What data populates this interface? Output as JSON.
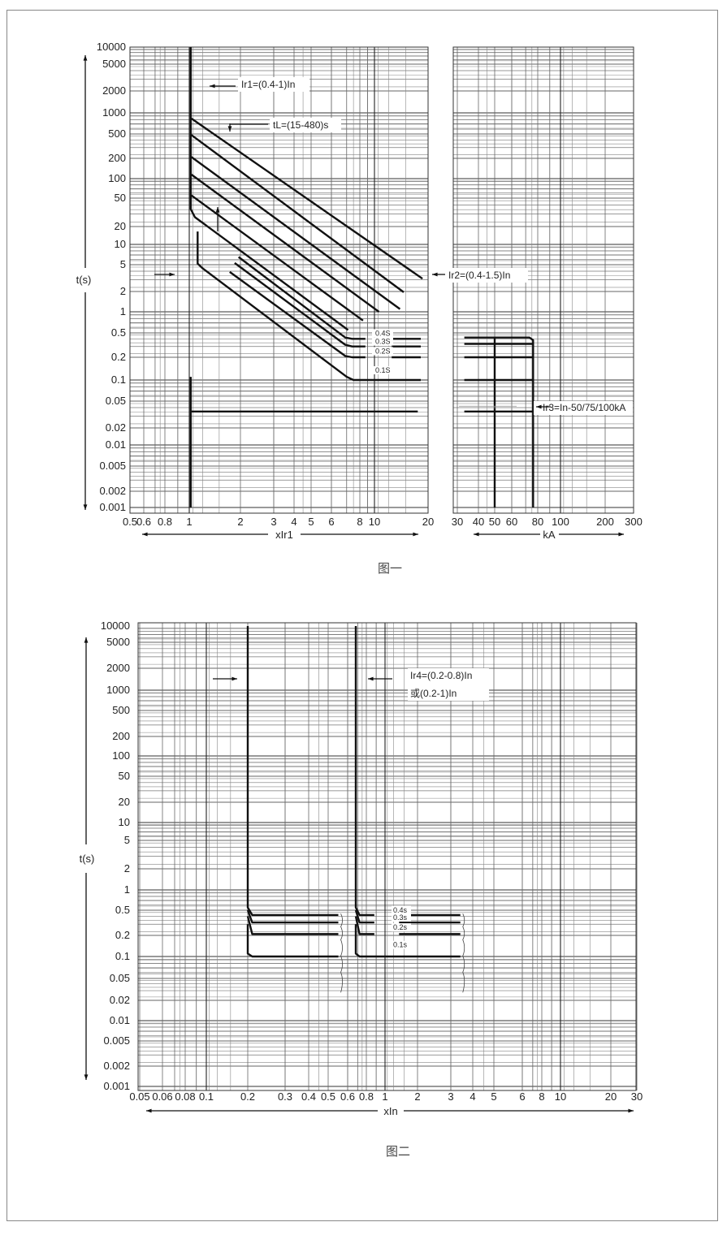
{
  "chart_data": [
    {
      "type": "line",
      "caption": "图一",
      "ylabel": "t(s)",
      "yscale": "log",
      "ylim": [
        0.001,
        10000
      ],
      "yticks": [
        "10000",
        "5000",
        "2000",
        "1000",
        "500",
        "200",
        "100",
        "50",
        "20",
        "10",
        "5",
        "2",
        "1",
        "0.5",
        "0.2",
        "0.1",
        "0.05",
        "0.02",
        "0.01",
        "0.005",
        "0.002",
        "0.001"
      ],
      "grid": true,
      "panels": [
        {
          "xlabel": "xIr1",
          "xscale": "log",
          "xlim": [
            0.5,
            20
          ],
          "xticks": [
            "0.5",
            "0.6",
            "0.8",
            "1",
            "2",
            "3",
            "4",
            "5",
            "6",
            "8",
            "10",
            "20"
          ],
          "curves": [
            {
              "role": "Ir1 pickup + long-time",
              "points": [
                [
                  1.02,
                  10000
                ],
                [
                  1.02,
                  35
                ],
                [
                  1.08,
                  27
                ],
                [
                  7.1,
                  0.55
                ]
              ]
            },
            {
              "role": "long-time",
              "points": [
                [
                  1.03,
                  830
                ],
                [
                  18.6,
                  3.1
                ]
              ]
            },
            {
              "role": "long-time",
              "points": [
                [
                  1.03,
                  480
                ],
                [
                  14.6,
                  1.95
                ]
              ]
            },
            {
              "role": "long-time",
              "points": [
                [
                  1.03,
                  210
                ],
                [
                  13.9,
                  1.1
                ]
              ]
            },
            {
              "role": "long-time",
              "points": [
                [
                  1.03,
                  115
                ],
                [
                  10.6,
                  1.0
                ]
              ]
            },
            {
              "role": "long-time",
              "points": [
                [
                  1.03,
                  55
                ],
                [
                  8.4,
                  0.75
                ]
              ]
            },
            {
              "role": "short-time 0.1S",
              "points": [
                [
                  1.12,
                  16.5
                ],
                [
                  1.12,
                  5.2
                ],
                [
                  1.2,
                  4.4
                ],
                [
                  7.0,
                  0.11
                ],
                [
                  7.5,
                  0.1
                ],
                [
                  18.2,
                  0.1
                ]
              ]
            },
            {
              "role": "short-time 0.2S",
              "points": [
                [
                  1.73,
                  3.9
                ],
                [
                  6.9,
                  0.21
                ],
                [
                  7.4,
                  0.2
                ],
                [
                  8.7,
                  0.2
                ]
              ],
              "tail": [
                [
                  12.5,
                  0.2
                ],
                [
                  18.2,
                  0.2
                ]
              ]
            },
            {
              "role": "short-time 0.3S",
              "points": [
                [
                  1.85,
                  5.3
                ],
                [
                  6.9,
                  0.32
                ],
                [
                  7.4,
                  0.3
                ],
                [
                  8.7,
                  0.3
                ]
              ],
              "tail": [
                [
                  12.5,
                  0.3
                ],
                [
                  18.2,
                  0.3
                ]
              ]
            },
            {
              "role": "short-time 0.4S",
              "points": [
                [
                  1.95,
                  6.5
                ],
                [
                  6.9,
                  0.42
                ],
                [
                  7.4,
                  0.4
                ],
                [
                  8.7,
                  0.4
                ]
              ],
              "tail": [
                [
                  12.5,
                  0.4
                ],
                [
                  18.2,
                  0.4
                ]
              ]
            },
            {
              "role": "instantaneous",
              "points": [
                [
                  1.02,
                  0.11
                ],
                [
                  1.02,
                  0.001
                ]
              ]
            },
            {
              "role": "instantaneous",
              "points": [
                [
                  1.02,
                  0.035
                ],
                [
                  17.5,
                  0.035
                ]
              ]
            }
          ],
          "delay_labels": [
            {
              "text": "0.4S",
              "y": 0.45
            },
            {
              "text": "0.3S",
              "y": 0.33
            },
            {
              "text": "0.2S",
              "y": 0.23
            },
            {
              "text": "0.1S",
              "y": 0.125
            }
          ]
        },
        {
          "xlabel": "kA",
          "xscale": "log",
          "xlim": [
            30,
            300
          ],
          "xticks": [
            "30",
            "40",
            "50",
            "60",
            "80",
            "100",
            "200",
            "300"
          ],
          "curves": [
            {
              "points": [
                [
                  33,
                  0.42
                ],
                [
                  73,
                  0.42
                ],
                [
                  76,
                  0.38
                ],
                [
                  76,
                  0.001
                ]
              ]
            },
            {
              "points": [
                [
                  33,
                  0.33
                ],
                [
                  76,
                  0.33
                ]
              ]
            },
            {
              "points": [
                [
                  33,
                  0.2
                ],
                [
                  76,
                  0.2
                ]
              ]
            },
            {
              "points": [
                [
                  33,
                  0.1
                ],
                [
                  76,
                  0.1
                ]
              ]
            },
            {
              "points": [
                [
                  33,
                  0.035
                ],
                [
                  76,
                  0.035
                ]
              ]
            },
            {
              "points": [
                [
                  50,
                  0.42
                ],
                [
                  50,
                  0.001
                ]
              ]
            }
          ]
        }
      ],
      "annotations": {
        "ir1": "Ir1=(0.4-1)In",
        "tl": "tL=(15-480)s",
        "ir2": "Ir2=(0.4-1.5)In",
        "ir3": "Ir3=In-50/75/100kA"
      }
    },
    {
      "type": "line",
      "caption": "图二",
      "ylabel": "t(s)",
      "yscale": "log",
      "ylim": [
        0.001,
        10000
      ],
      "yticks": [
        "10000",
        "5000",
        "2000",
        "1000",
        "500",
        "200",
        "100",
        "50",
        "20",
        "10",
        "5",
        "2",
        "1",
        "0.5",
        "0.2",
        "0.1",
        "0.05",
        "0.02",
        "0.01",
        "0.005",
        "0.002",
        "0.001"
      ],
      "xlabel": "xIn",
      "xscale": "log",
      "xlim": [
        0.05,
        30
      ],
      "xticks": [
        "0.05",
        "0.06",
        "0.08",
        "0.1",
        "0.2",
        "0.3",
        "0.4",
        "0.5",
        "0.6",
        "0.8",
        "1",
        "2",
        "3",
        "4",
        "5",
        "6",
        "8",
        "10",
        "20",
        "30"
      ],
      "grid": true,
      "curves": [
        {
          "points": [
            [
              0.2,
              10000
            ],
            [
              0.2,
              0.55
            ],
            [
              0.21,
              0.42
            ],
            [
              0.55,
              0.42
            ]
          ]
        },
        {
          "points": [
            [
              0.2,
              0.5
            ],
            [
              0.21,
              0.32
            ],
            [
              0.55,
              0.32
            ]
          ]
        },
        {
          "points": [
            [
              0.2,
              0.4
            ],
            [
              0.21,
              0.21
            ],
            [
              0.55,
              0.21
            ]
          ]
        },
        {
          "points": [
            [
              0.2,
              0.3
            ],
            [
              0.2,
              0.11
            ],
            [
              0.21,
              0.1
            ],
            [
              0.55,
              0.1
            ]
          ]
        },
        {
          "points": [
            [
              0.68,
              10000
            ],
            [
              0.68,
              0.55
            ],
            [
              0.72,
              0.42
            ],
            [
              0.88,
              0.42
            ]
          ],
          "tail": [
            [
              1.35,
              0.42
            ],
            [
              3.4,
              0.42
            ]
          ]
        },
        {
          "points": [
            [
              0.68,
              0.5
            ],
            [
              0.72,
              0.32
            ],
            [
              0.88,
              0.32
            ]
          ],
          "tail": [
            [
              1.35,
              0.32
            ],
            [
              3.4,
              0.32
            ]
          ]
        },
        {
          "points": [
            [
              0.68,
              0.4
            ],
            [
              0.72,
              0.21
            ],
            [
              0.88,
              0.21
            ]
          ],
          "tail": [
            [
              1.35,
              0.21
            ],
            [
              3.4,
              0.21
            ]
          ]
        },
        {
          "points": [
            [
              0.68,
              0.3
            ],
            [
              0.68,
              0.11
            ],
            [
              0.72,
              0.1
            ],
            [
              3.4,
              0.1
            ]
          ]
        }
      ],
      "delay_labels": [
        {
          "text": "0.4s",
          "y": 0.46
        },
        {
          "text": "0.3s",
          "y": 0.35
        },
        {
          "text": "0.2s",
          "y": 0.245
        },
        {
          "text": "0.1s",
          "y": 0.135
        }
      ],
      "annotations": {
        "ir4_line1": "Ir4=(0.2-0.8)In",
        "ir4_line2": "或(0.2-1)In"
      }
    }
  ]
}
